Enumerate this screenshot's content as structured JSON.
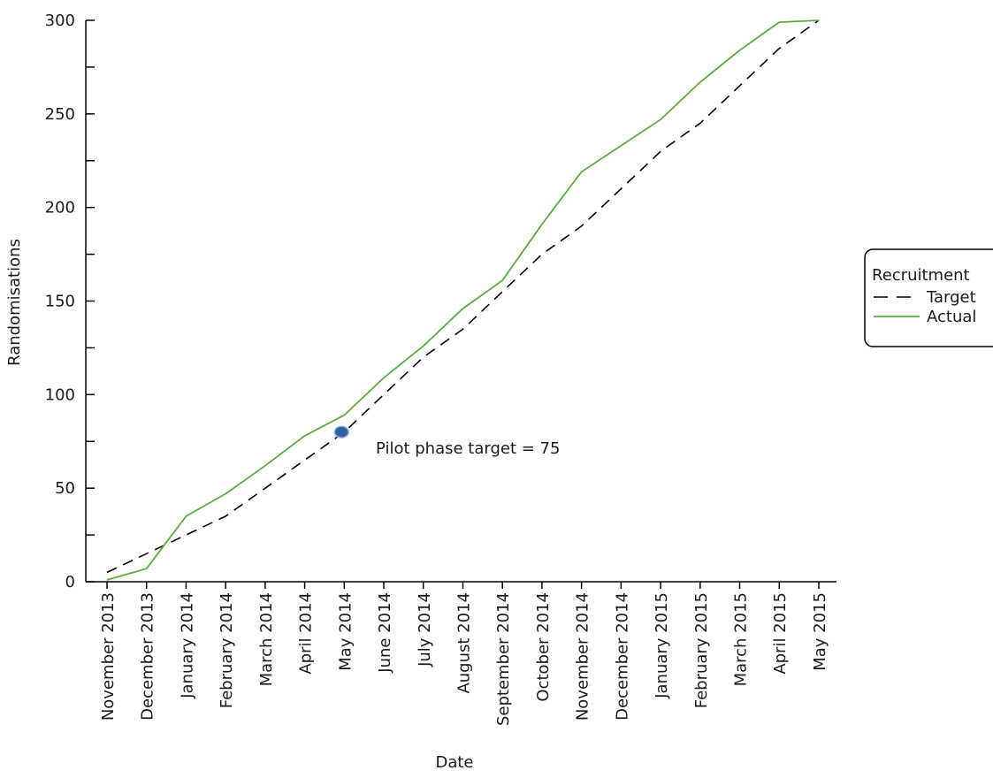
{
  "chart_data": {
    "type": "line",
    "title": "",
    "xlabel": "Date",
    "ylabel": "Randomisations",
    "ylim": [
      0,
      300
    ],
    "yticks": [
      0,
      50,
      100,
      150,
      200,
      250,
      300
    ],
    "categories": [
      "November 2013",
      "December 2013",
      "January 2014",
      "February 2014",
      "March 2014",
      "April 2014",
      "May 2014",
      "June 2014",
      "July 2014",
      "August 2014",
      "September 2014",
      "October 2014",
      "November 2014",
      "December 2014",
      "January 2015",
      "February 2015",
      "March 2015",
      "April 2015",
      "May 2015"
    ],
    "series": [
      {
        "name": "Target",
        "style": "dashed",
        "color": "#000000",
        "values": [
          5,
          15,
          25,
          35,
          50,
          65,
          80,
          100,
          120,
          135,
          155,
          175,
          190,
          210,
          230,
          245,
          265,
          285,
          300
        ]
      },
      {
        "name": "Actual",
        "style": "solid",
        "color": "#5aac3c",
        "values": [
          1,
          7,
          35,
          47,
          62,
          78,
          89,
          109,
          126,
          146,
          161,
          191,
          219,
          233,
          247,
          267,
          284,
          299,
          300
        ]
      }
    ],
    "annotation": {
      "label": "Pilot phase target = 75",
      "category": "May 2014",
      "value": 80,
      "marker_color": "#2e5fa8"
    },
    "legend": {
      "title": "Recruitment",
      "placement": "right",
      "entries": [
        "Target",
        "Actual"
      ]
    },
    "grid": false
  }
}
